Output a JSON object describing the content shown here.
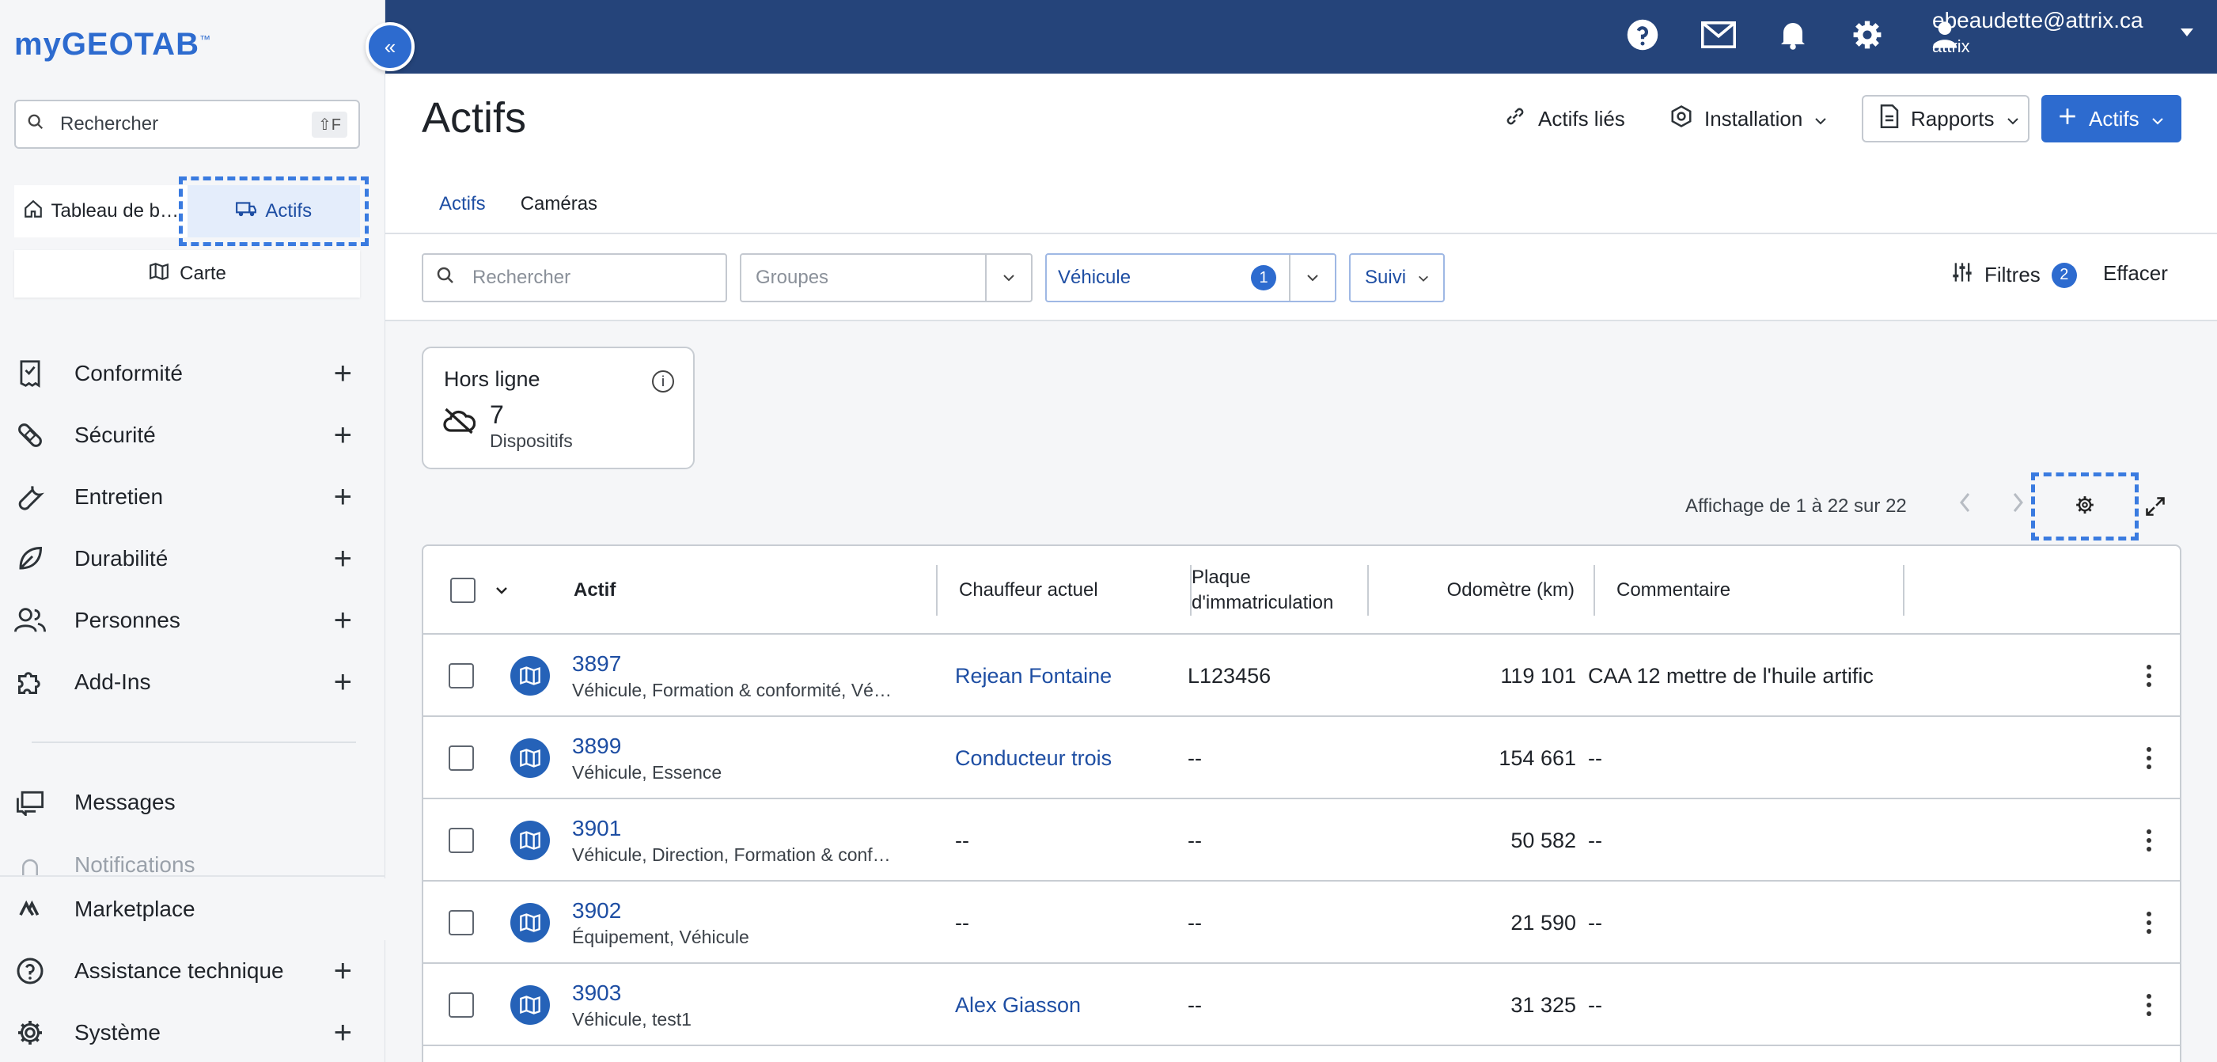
{
  "sidebar": {
    "logo_my": "my",
    "logo_geo": "GEOTAB",
    "logo_tm": "™",
    "collapse_label": "«",
    "search_placeholder": "Rechercher",
    "search_shortcut": "⇧F",
    "quick": [
      {
        "label": "Tableau de b…",
        "icon": "home-icon"
      },
      {
        "label": "Actifs",
        "icon": "truck-icon"
      }
    ],
    "map_label": "Carte",
    "nav": [
      {
        "label": "Conformité",
        "icon": "checklist-icon"
      },
      {
        "label": "Sécurité",
        "icon": "bandage-icon"
      },
      {
        "label": "Entretien",
        "icon": "wrench-icon"
      },
      {
        "label": "Durabilité",
        "icon": "leaf-icon"
      },
      {
        "label": "Personnes",
        "icon": "people-icon"
      },
      {
        "label": "Add-Ins",
        "icon": "puzzle-icon"
      },
      {
        "label": "Messages",
        "icon": "messages-icon"
      },
      {
        "label": "Notifications",
        "icon": "bell-icon"
      },
      {
        "label": "Marketplace",
        "icon": "marketplace-icon"
      },
      {
        "label": "Assistance technique",
        "icon": "help-icon"
      },
      {
        "label": "Système",
        "icon": "gear-icon"
      }
    ]
  },
  "topbar": {
    "user_email": "ebeaudette@attrix.ca",
    "user_org": "attrix"
  },
  "header": {
    "title": "Actifs",
    "linked_assets": "Actifs liés",
    "installation": "Installation",
    "reports": "Rapports",
    "add_assets": "Actifs"
  },
  "tabs": [
    "Actifs",
    "Caméras"
  ],
  "filters": {
    "search_placeholder": "Rechercher",
    "groups_placeholder": "Groupes",
    "vehicle_label": "Véhicule",
    "vehicle_count": "1",
    "tracking_label": "Suivi",
    "filters_label": "Filtres",
    "filters_count": "2",
    "clear_label": "Effacer"
  },
  "card": {
    "title": "Hors ligne",
    "count": "7",
    "unit": "Dispositifs"
  },
  "pager": {
    "summary": "Affichage de 1 à 22 sur 22"
  },
  "table": {
    "columns": [
      "Actif",
      "Chauffeur actuel",
      "Plaque d'immatriculation",
      "Odomètre (km)",
      "Commentaire"
    ],
    "rows": [
      {
        "id": "3897",
        "groups": "Véhicule, Formation & conformité, Vé…",
        "driver": "Rejean Fontaine",
        "plate": "L123456",
        "odometer": "119 101",
        "comment": "CAA 12 mettre de l'huile artific"
      },
      {
        "id": "3899",
        "groups": "Véhicule, Essence",
        "driver": "Conducteur trois",
        "plate": "--",
        "odometer": "154 661",
        "comment": "--"
      },
      {
        "id": "3901",
        "groups": "Véhicule, Direction, Formation & conf…",
        "driver": "--",
        "plate": "--",
        "odometer": "50 582",
        "comment": "--"
      },
      {
        "id": "3902",
        "groups": "Équipement, Véhicule",
        "driver": "--",
        "plate": "--",
        "odometer": "21 590",
        "comment": "--"
      },
      {
        "id": "3903",
        "groups": "Véhicule, test1",
        "driver": "Alex Giasson",
        "plate": "--",
        "odometer": "31 325",
        "comment": "--"
      }
    ]
  },
  "colors": {
    "topbar": "#25447a",
    "accent": "#2d6bcf",
    "link": "#1e4ea3"
  }
}
